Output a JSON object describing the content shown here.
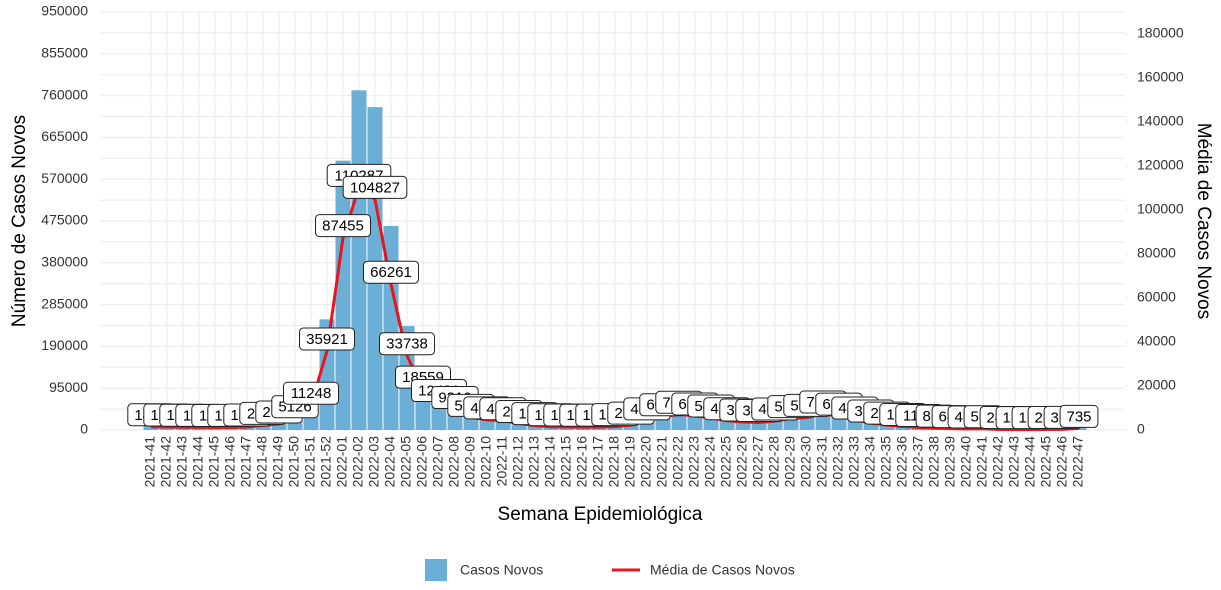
{
  "chart_data": {
    "type": "bar_line",
    "x_label": "Semana Epidemiológica",
    "y_label": "Número de Casos Novos",
    "y2_label": "Média de Casos Novos",
    "categories": [
      "2021-41",
      "2021-42",
      "2021-43",
      "2021-44",
      "2021-45",
      "2021-46",
      "2021-47",
      "2021-48",
      "2021-49",
      "2021-50",
      "2021-51",
      "2021-52",
      "2022-01",
      "2022-02",
      "2022-03",
      "2022-04",
      "2022-05",
      "2022-06",
      "2022-07",
      "2022-08",
      "2022-09",
      "2022-10",
      "2022-11",
      "2022-12",
      "2022-13",
      "2022-14",
      "2022-15",
      "2022-16",
      "2022-17",
      "2022-18",
      "2022-19",
      "2022-20",
      "2022-21",
      "2022-22",
      "2022-23",
      "2022-24",
      "2022-25",
      "2022-26",
      "2022-27",
      "2022-28",
      "2022-29",
      "2022-30",
      "2022-31",
      "2022-32",
      "2022-33",
      "2022-34",
      "2022-35",
      "2022-36",
      "2022-37",
      "2022-38",
      "2022-39",
      "2022-40",
      "2022-41",
      "2022-42",
      "2022-43",
      "2022-44",
      "2022-45",
      "2022-46",
      "2022-47"
    ],
    "series": [
      {
        "name": "Casos Novos",
        "color": "#6baed6",
        "values": [
          10150,
          9660,
          8820,
          8330,
          8050,
          8470,
          9380,
          14770,
          19110,
          35882,
          78736,
          251447,
          612185,
          772009,
          733789,
          463827,
          236166,
          129913,
          87360,
          65170,
          40040,
          32270,
          29260,
          20650,
          13860,
          10220,
          9730,
          8890,
          9310,
          10640,
          15470,
          28910,
          42140,
          49980,
          44450,
          38360,
          29470,
          25550,
          23940,
          28560,
          36120,
          40180,
          50750,
          44170,
          31640,
          22190,
          15680,
          11270,
          7840,
          6034,
          4487,
          3346,
          4109,
          1722,
          1323,
          1064,
          1491,
          2135,
          5145
        ]
      },
      {
        "name": "Média de Casos Novos",
        "color": "#e8151b",
        "axis": "y2",
        "values": [
          1450,
          1380,
          1260,
          1190,
          1150,
          1210,
          1340,
          2110,
          2730,
          5126,
          11248,
          35921,
          87455,
          110287,
          104827,
          66261,
          33738,
          18559,
          12480,
          9310,
          5720,
          4610,
          4180,
          2950,
          1980,
          1460,
          1390,
          1270,
          1330,
          1520,
          2210,
          4130,
          6020,
          7140,
          6350,
          5480,
          4210,
          3650,
          3420,
          4080,
          5160,
          5740,
          7250,
          6310,
          4520,
          3170,
          2240,
          1610,
          1120,
          862,
          641,
          478,
          587,
          246,
          189,
          152,
          213,
          305,
          735
        ]
      }
    ],
    "ylim": [
      0,
      950000
    ],
    "yticks": [
      0,
      95000,
      190000,
      285000,
      380000,
      475000,
      570000,
      665000,
      760000,
      855000,
      950000
    ],
    "y2lim": [
      0,
      190000
    ],
    "y2ticks": [
      0,
      20000,
      40000,
      60000,
      80000,
      100000,
      120000,
      140000,
      160000,
      180000
    ],
    "grid": true,
    "legend": "bottom"
  }
}
